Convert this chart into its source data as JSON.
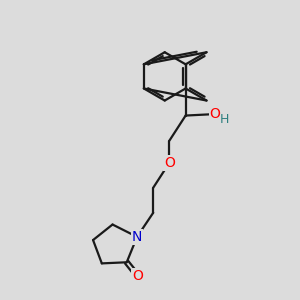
{
  "bg_color": "#dcdcdc",
  "bond_color": "#1a1a1a",
  "bond_width": 1.6,
  "atom_colors": {
    "O": "#ff0000",
    "N": "#0000cc",
    "H": "#2f8080",
    "C": "#1a1a1a"
  },
  "font_size_atom": 10,
  "font_size_H": 9,
  "figsize": [
    3.0,
    3.0
  ],
  "dpi": 100
}
